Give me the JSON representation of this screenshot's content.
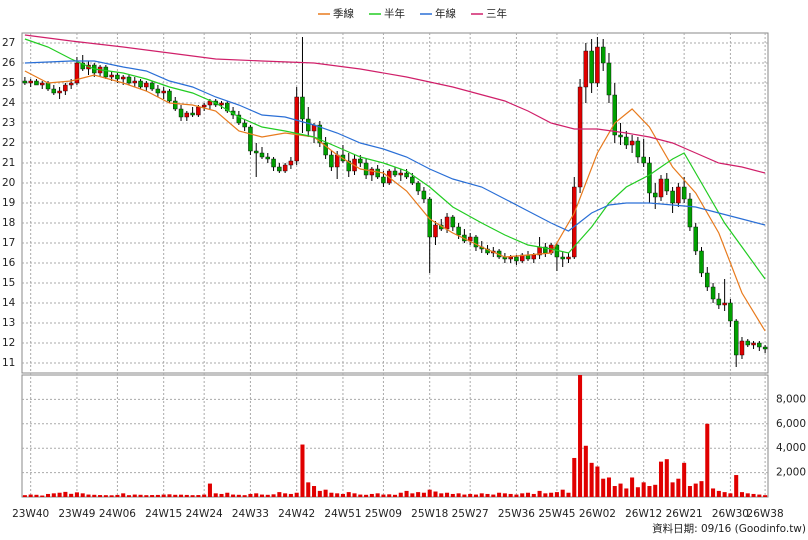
{
  "chart_data": {
    "type": "candlestick",
    "source": "資料日期: 09/16 (Goodinfo.tw)",
    "up_color": "#e00000",
    "down_color": "#00a000",
    "wick_color": "#000000",
    "volume_color": "#e00000",
    "grid": true,
    "xlim": [
      -0.5,
      128.5
    ],
    "xticks": [
      {
        "value": 1,
        "label": "23W40"
      },
      {
        "value": 9,
        "label": "23W49"
      },
      {
        "value": 16,
        "label": "24W06"
      },
      {
        "value": 24,
        "label": "24W15"
      },
      {
        "value": 31,
        "label": "24W24"
      },
      {
        "value": 39,
        "label": "24W33"
      },
      {
        "value": 47,
        "label": "24W42"
      },
      {
        "value": 55,
        "label": "24W51"
      },
      {
        "value": 62,
        "label": "25W09"
      },
      {
        "value": 70,
        "label": "25W18"
      },
      {
        "value": 77,
        "label": "25W27"
      },
      {
        "value": 85,
        "label": "25W36"
      },
      {
        "value": 92,
        "label": "25W45"
      },
      {
        "value": 99,
        "label": "26W02"
      },
      {
        "value": 107,
        "label": "26W12"
      },
      {
        "value": 114,
        "label": "26W21"
      },
      {
        "value": 122,
        "label": "26W30"
      },
      {
        "value": 128,
        "label": "26W38"
      }
    ],
    "ylim": [
      10.5,
      27.5
    ],
    "yticks": [
      11,
      12,
      13,
      14,
      15,
      16,
      17,
      18,
      19,
      20,
      21,
      22,
      23,
      24,
      25,
      26,
      27
    ],
    "volume_ylim": [
      0,
      10000
    ],
    "volume_ticks": [
      {
        "value": 2000,
        "label": "2,000"
      },
      {
        "value": 4000,
        "label": "4,000"
      },
      {
        "value": 6000,
        "label": "6,000"
      },
      {
        "value": 8000,
        "label": "8,000"
      }
    ],
    "ohlc": [
      [
        25.1,
        25.3,
        24.9,
        25.0
      ],
      [
        25.0,
        25.2,
        24.8,
        25.1
      ],
      [
        25.1,
        25.2,
        24.9,
        24.9
      ],
      [
        24.9,
        25.1,
        24.7,
        25.0
      ],
      [
        25.0,
        25.1,
        24.6,
        24.7
      ],
      [
        24.7,
        24.9,
        24.4,
        24.5
      ],
      [
        24.5,
        24.8,
        24.2,
        24.6
      ],
      [
        24.6,
        25.0,
        24.4,
        24.9
      ],
      [
        24.9,
        25.2,
        24.7,
        25.0
      ],
      [
        25.0,
        26.3,
        24.9,
        26.0
      ],
      [
        26.0,
        26.4,
        25.6,
        25.7
      ],
      [
        25.7,
        26.1,
        25.4,
        25.9
      ],
      [
        25.9,
        26.0,
        25.3,
        25.5
      ],
      [
        25.5,
        25.9,
        25.3,
        25.8
      ],
      [
        25.8,
        25.9,
        25.2,
        25.3
      ],
      [
        25.3,
        25.6,
        25.1,
        25.4
      ],
      [
        25.4,
        25.5,
        25.0,
        25.2
      ],
      [
        25.2,
        25.4,
        24.9,
        25.3
      ],
      [
        25.3,
        25.4,
        24.9,
        25.0
      ],
      [
        25.0,
        25.3,
        24.8,
        25.1
      ],
      [
        25.1,
        25.2,
        24.7,
        24.8
      ],
      [
        24.8,
        25.1,
        24.6,
        25.0
      ],
      [
        25.0,
        25.1,
        24.6,
        24.7
      ],
      [
        24.7,
        24.9,
        24.3,
        24.5
      ],
      [
        24.5,
        24.8,
        24.2,
        24.6
      ],
      [
        24.6,
        24.7,
        24.0,
        24.1
      ],
      [
        24.1,
        24.3,
        23.6,
        23.7
      ],
      [
        23.7,
        23.9,
        23.1,
        23.3
      ],
      [
        23.3,
        23.6,
        23.1,
        23.5
      ],
      [
        23.5,
        23.8,
        23.3,
        23.4
      ],
      [
        23.4,
        23.9,
        23.3,
        23.8
      ],
      [
        23.8,
        24.0,
        23.6,
        23.9
      ],
      [
        23.9,
        24.2,
        23.7,
        24.1
      ],
      [
        24.1,
        24.2,
        23.8,
        23.9
      ],
      [
        23.9,
        24.1,
        23.7,
        24.0
      ],
      [
        24.0,
        24.1,
        23.5,
        23.6
      ],
      [
        23.6,
        23.8,
        23.2,
        23.4
      ],
      [
        23.4,
        23.6,
        22.9,
        23.0
      ],
      [
        23.0,
        23.2,
        22.6,
        22.8
      ],
      [
        22.8,
        22.9,
        21.4,
        21.6
      ],
      [
        21.6,
        22.0,
        20.3,
        21.5
      ],
      [
        21.5,
        21.8,
        21.2,
        21.3
      ],
      [
        21.3,
        21.5,
        21.0,
        21.2
      ],
      [
        21.2,
        21.3,
        20.6,
        20.8
      ],
      [
        20.8,
        21.0,
        20.5,
        20.6
      ],
      [
        20.6,
        21.0,
        20.5,
        20.9
      ],
      [
        20.9,
        21.3,
        20.7,
        21.1
      ],
      [
        21.1,
        24.8,
        20.9,
        24.3
      ],
      [
        24.3,
        27.3,
        22.5,
        23.2
      ],
      [
        23.2,
        23.8,
        22.3,
        22.6
      ],
      [
        22.6,
        23.0,
        22.0,
        22.9
      ],
      [
        22.9,
        23.1,
        21.8,
        22.0
      ],
      [
        22.0,
        22.3,
        21.2,
        21.4
      ],
      [
        21.4,
        21.6,
        20.6,
        20.8
      ],
      [
        20.8,
        21.6,
        20.2,
        21.4
      ],
      [
        21.4,
        21.9,
        21.0,
        21.1
      ],
      [
        21.1,
        21.5,
        20.3,
        20.6
      ],
      [
        20.6,
        21.4,
        20.4,
        21.2
      ],
      [
        21.2,
        21.4,
        20.8,
        21.0
      ],
      [
        21.0,
        21.2,
        20.2,
        20.4
      ],
      [
        20.4,
        20.8,
        20.1,
        20.7
      ],
      [
        20.7,
        20.9,
        20.2,
        20.3
      ],
      [
        20.3,
        20.6,
        19.8,
        20.0
      ],
      [
        20.0,
        20.7,
        19.9,
        20.6
      ],
      [
        20.6,
        20.8,
        20.3,
        20.4
      ],
      [
        20.4,
        20.7,
        20.1,
        20.5
      ],
      [
        20.5,
        20.7,
        20.2,
        20.3
      ],
      [
        20.3,
        20.5,
        19.9,
        20.0
      ],
      [
        20.0,
        20.1,
        19.4,
        19.6
      ],
      [
        19.6,
        19.8,
        19.0,
        19.2
      ],
      [
        19.2,
        19.3,
        15.5,
        17.3
      ],
      [
        17.3,
        18.1,
        16.9,
        17.9
      ],
      [
        17.9,
        18.2,
        17.6,
        17.7
      ],
      [
        17.7,
        18.5,
        17.5,
        18.3
      ],
      [
        18.3,
        18.4,
        17.6,
        17.8
      ],
      [
        17.8,
        18.0,
        17.2,
        17.4
      ],
      [
        17.4,
        17.7,
        17.0,
        17.1
      ],
      [
        17.1,
        17.5,
        16.9,
        17.3
      ],
      [
        17.3,
        17.4,
        16.6,
        16.8
      ],
      [
        16.8,
        17.1,
        16.5,
        16.7
      ],
      [
        16.7,
        16.9,
        16.4,
        16.5
      ],
      [
        16.5,
        16.8,
        16.3,
        16.6
      ],
      [
        16.6,
        16.7,
        16.2,
        16.3
      ],
      [
        16.3,
        16.5,
        16.0,
        16.2
      ],
      [
        16.2,
        16.4,
        16.0,
        16.3
      ],
      [
        16.3,
        16.4,
        15.9,
        16.1
      ],
      [
        16.1,
        16.5,
        16.0,
        16.4
      ],
      [
        16.4,
        16.6,
        16.1,
        16.2
      ],
      [
        16.2,
        16.5,
        16.0,
        16.4
      ],
      [
        16.4,
        17.3,
        16.2,
        16.8
      ],
      [
        16.8,
        17.0,
        16.3,
        16.5
      ],
      [
        16.5,
        17.0,
        16.4,
        16.9
      ],
      [
        16.9,
        17.0,
        15.6,
        16.3
      ],
      [
        16.3,
        16.6,
        15.8,
        16.2
      ],
      [
        16.2,
        16.5,
        16.0,
        16.3
      ],
      [
        16.3,
        20.3,
        16.2,
        19.8
      ],
      [
        19.8,
        25.2,
        19.5,
        24.8
      ],
      [
        24.8,
        27.0,
        24.0,
        26.6
      ],
      [
        26.6,
        27.2,
        24.5,
        25.0
      ],
      [
        25.0,
        27.3,
        24.8,
        26.8
      ],
      [
        26.8,
        27.2,
        25.6,
        26.0
      ],
      [
        26.0,
        26.5,
        24.0,
        24.4
      ],
      [
        24.4,
        25.0,
        22.0,
        22.4
      ],
      [
        22.4,
        23.0,
        21.9,
        22.3
      ],
      [
        22.3,
        22.6,
        21.7,
        21.9
      ],
      [
        21.9,
        22.4,
        21.5,
        22.1
      ],
      [
        22.1,
        22.3,
        21.0,
        21.3
      ],
      [
        21.3,
        22.2,
        20.8,
        21.0
      ],
      [
        21.0,
        21.3,
        19.0,
        19.5
      ],
      [
        19.5,
        20.0,
        18.7,
        19.3
      ],
      [
        19.3,
        20.4,
        19.1,
        20.2
      ],
      [
        20.2,
        20.5,
        19.4,
        19.6
      ],
      [
        19.6,
        19.8,
        18.5,
        19.0
      ],
      [
        19.0,
        20.0,
        18.8,
        19.8
      ],
      [
        19.8,
        20.3,
        19.0,
        19.2
      ],
      [
        19.2,
        19.5,
        17.6,
        17.8
      ],
      [
        17.8,
        18.0,
        16.4,
        16.6
      ],
      [
        16.6,
        16.8,
        15.3,
        15.5
      ],
      [
        15.5,
        15.8,
        14.6,
        14.8
      ],
      [
        14.8,
        15.0,
        14.0,
        14.2
      ],
      [
        14.2,
        14.5,
        13.7,
        13.9
      ],
      [
        13.9,
        15.2,
        13.6,
        14.0
      ],
      [
        14.0,
        14.2,
        12.8,
        13.1
      ],
      [
        13.1,
        13.2,
        10.8,
        11.4
      ],
      [
        11.4,
        12.3,
        11.2,
        12.1
      ],
      [
        12.1,
        12.2,
        11.8,
        11.9
      ],
      [
        11.9,
        12.1,
        11.7,
        12.0
      ],
      [
        12.0,
        12.1,
        11.6,
        11.8
      ],
      [
        11.8,
        11.9,
        11.5,
        11.7
      ]
    ],
    "volume": [
      150,
      200,
      180,
      120,
      250,
      300,
      350,
      420,
      260,
      380,
      300,
      200,
      180,
      160,
      150,
      140,
      170,
      300,
      150,
      200,
      180,
      150,
      160,
      170,
      200,
      220,
      180,
      190,
      170,
      150,
      160,
      200,
      1100,
      300,
      250,
      350,
      200,
      180,
      150,
      250,
      300,
      200,
      180,
      220,
      400,
      300,
      250,
      350,
      4300,
      1200,
      900,
      500,
      600,
      350,
      300,
      250,
      400,
      300,
      200,
      180,
      250,
      300,
      200,
      220,
      180,
      350,
      500,
      300,
      400,
      350,
      600,
      450,
      300,
      350,
      250,
      300,
      200,
      250,
      200,
      300,
      250,
      200,
      350,
      300,
      250,
      200,
      300,
      350,
      250,
      500,
      300,
      350,
      400,
      600,
      350,
      3200,
      10000,
      4200,
      2800,
      2500,
      1500,
      1600,
      900,
      1100,
      700,
      1600,
      800,
      1200,
      900,
      1000,
      2900,
      3100,
      1200,
      1500,
      2800,
      900,
      1100,
      1300,
      6000,
      700,
      500,
      400,
      300,
      1800,
      400,
      300,
      250,
      200,
      150
    ],
    "series": [
      {
        "name": "季線",
        "color": "#e87b1e",
        "x": [
          0,
          4,
          8,
          12,
          17,
          21,
          25,
          29,
          33,
          37,
          41,
          45,
          50,
          54,
          58,
          62,
          66,
          70,
          74,
          79,
          83,
          87,
          91,
          95,
          99,
          102,
          105,
          108,
          112,
          116,
          120,
          124,
          128
        ],
        "values": [
          25.6,
          25.0,
          25.1,
          25.4,
          25.0,
          24.6,
          24.0,
          23.9,
          23.6,
          22.6,
          22.3,
          22.5,
          22.3,
          21.4,
          20.7,
          20.5,
          19.6,
          18.2,
          17.5,
          16.8,
          16.3,
          16.4,
          16.5,
          18.5,
          21.5,
          23.0,
          23.7,
          22.8,
          20.8,
          19.5,
          17.5,
          14.5,
          12.6
        ]
      },
      {
        "name": "半年",
        "color": "#22cc22",
        "x": [
          0,
          4,
          8,
          12,
          17,
          21,
          25,
          29,
          33,
          37,
          41,
          45,
          50,
          54,
          58,
          62,
          66,
          70,
          74,
          79,
          83,
          87,
          91,
          94,
          98,
          101,
          104,
          108,
          112,
          114,
          117,
          121,
          124,
          128
        ],
        "values": [
          27.2,
          26.8,
          26.2,
          25.7,
          25.5,
          25.2,
          24.8,
          24.5,
          24.0,
          23.3,
          22.8,
          22.6,
          22.3,
          21.8,
          21.3,
          21.0,
          20.6,
          19.8,
          18.8,
          18.0,
          17.4,
          16.9,
          16.7,
          16.5,
          17.8,
          19.0,
          19.8,
          20.4,
          21.2,
          21.5,
          20.0,
          18.0,
          16.8,
          15.2
        ]
      },
      {
        "name": "年線",
        "color": "#2a6fd6",
        "x": [
          0,
          8,
          12,
          17,
          21,
          25,
          29,
          33,
          37,
          41,
          45,
          50,
          54,
          58,
          62,
          66,
          70,
          74,
          79,
          83,
          87,
          91,
          94,
          98,
          101,
          104,
          108,
          112,
          116,
          120,
          124,
          128
        ],
        "values": [
          26.0,
          26.1,
          26.1,
          25.8,
          25.6,
          25.1,
          24.8,
          24.3,
          23.9,
          23.4,
          23.3,
          22.9,
          22.5,
          22.0,
          21.7,
          21.3,
          20.7,
          20.2,
          19.8,
          19.2,
          18.6,
          18.0,
          17.6,
          18.5,
          18.9,
          19.0,
          19.0,
          18.9,
          18.8,
          18.5,
          18.2,
          17.9
        ]
      },
      {
        "name": "三年",
        "color": "#d0206a",
        "x": [
          0,
          8,
          17,
          25,
          33,
          41,
          50,
          58,
          66,
          74,
          83,
          87,
          91,
          95,
          99,
          104,
          108,
          112,
          116,
          120,
          124,
          128
        ],
        "values": [
          27.4,
          27.1,
          26.8,
          26.5,
          26.2,
          26.1,
          26.0,
          25.7,
          25.3,
          24.8,
          24.1,
          23.6,
          23.0,
          22.7,
          22.7,
          22.5,
          22.3,
          22.0,
          21.5,
          21.0,
          20.8,
          20.5
        ]
      }
    ]
  }
}
